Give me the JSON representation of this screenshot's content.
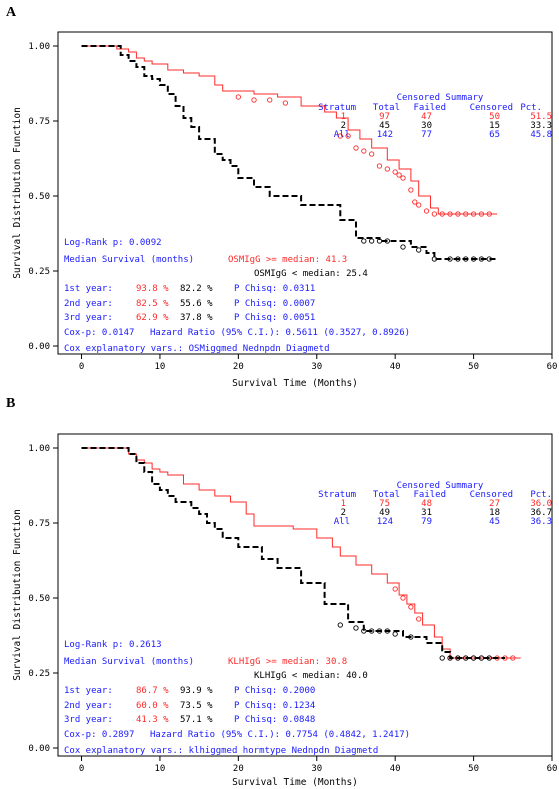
{
  "chart_data": [
    {
      "panel_label": "A",
      "type": "line",
      "xlabel": "Survival Time (Months)",
      "ylabel": "Survival Distribution Function",
      "xlim": [
        -3,
        60
      ],
      "ylim": [
        0,
        1
      ],
      "x_ticks": [
        "0",
        "10",
        "20",
        "30",
        "40",
        "50",
        "60"
      ],
      "y_ticks": [
        "0.00",
        "0.25",
        "0.50",
        "0.75",
        "1.00"
      ],
      "grid": false,
      "colors": {
        "stratum1": "#ff2a2a",
        "stratum2": "#000000",
        "info": "#1a1aff"
      },
      "series": [
        {
          "stratum": "1",
          "color": "#ff2a2a",
          "style": "solid",
          "points": [
            [
              0,
              1
            ],
            [
              4,
              1
            ],
            [
              4.5,
              0.99
            ],
            [
              6,
              0.98
            ],
            [
              7,
              0.96
            ],
            [
              8,
              0.95
            ],
            [
              9,
              0.94
            ],
            [
              11,
              0.92
            ],
            [
              13,
              0.91
            ],
            [
              15,
              0.9
            ],
            [
              17,
              0.87
            ],
            [
              18,
              0.85
            ],
            [
              22,
              0.84
            ],
            [
              25,
              0.83
            ],
            [
              28,
              0.8
            ],
            [
              31,
              0.78
            ],
            [
              32.5,
              0.76
            ],
            [
              34,
              0.72
            ],
            [
              35.5,
              0.69
            ],
            [
              37,
              0.66
            ],
            [
              39,
              0.62
            ],
            [
              40.5,
              0.59
            ],
            [
              42,
              0.55
            ],
            [
              43,
              0.5
            ],
            [
              44.5,
              0.46
            ],
            [
              45.5,
              0.44
            ],
            [
              53,
              0.44
            ]
          ],
          "censored": [
            [
              20,
              0.83
            ],
            [
              22,
              0.82
            ],
            [
              24,
              0.82
            ],
            [
              26,
              0.81
            ],
            [
              33,
              0.7
            ],
            [
              34,
              0.7
            ],
            [
              35,
              0.66
            ],
            [
              36,
              0.65
            ],
            [
              37,
              0.64
            ],
            [
              38,
              0.6
            ],
            [
              39,
              0.59
            ],
            [
              40,
              0.58
            ],
            [
              40.5,
              0.57
            ],
            [
              41,
              0.56
            ],
            [
              42,
              0.52
            ],
            [
              42.5,
              0.48
            ],
            [
              43,
              0.47
            ],
            [
              44,
              0.45
            ],
            [
              45,
              0.44
            ],
            [
              46,
              0.44
            ],
            [
              47,
              0.44
            ],
            [
              48,
              0.44
            ],
            [
              49,
              0.44
            ],
            [
              50,
              0.44
            ],
            [
              51,
              0.44
            ],
            [
              52,
              0.44
            ]
          ]
        },
        {
          "stratum": "2",
          "color": "#000000",
          "style": "dashed",
          "points": [
            [
              0,
              1
            ],
            [
              4,
              1
            ],
            [
              5,
              0.97
            ],
            [
              6,
              0.95
            ],
            [
              7,
              0.93
            ],
            [
              8,
              0.9
            ],
            [
              9,
              0.89
            ],
            [
              10,
              0.87
            ],
            [
              11,
              0.84
            ],
            [
              12,
              0.8
            ],
            [
              13,
              0.76
            ],
            [
              14,
              0.73
            ],
            [
              15,
              0.69
            ],
            [
              17,
              0.64
            ],
            [
              18,
              0.62
            ],
            [
              19,
              0.6
            ],
            [
              20,
              0.56
            ],
            [
              22,
              0.53
            ],
            [
              24,
              0.5
            ],
            [
              28,
              0.47
            ],
            [
              33,
              0.42
            ],
            [
              35,
              0.36
            ],
            [
              38,
              0.35
            ],
            [
              42,
              0.33
            ],
            [
              44,
              0.31
            ],
            [
              45,
              0.29
            ],
            [
              53,
              0.29
            ]
          ],
          "censored": [
            [
              36,
              0.35
            ],
            [
              37,
              0.35
            ],
            [
              38,
              0.35
            ],
            [
              39,
              0.35
            ],
            [
              41,
              0.33
            ],
            [
              43,
              0.32
            ],
            [
              45,
              0.29
            ],
            [
              47,
              0.29
            ],
            [
              48,
              0.29
            ],
            [
              49,
              0.29
            ],
            [
              50,
              0.29
            ],
            [
              51,
              0.29
            ],
            [
              52,
              0.29
            ]
          ]
        }
      ],
      "summary": {
        "title": "Censored Summary",
        "headers": [
          "Stratum",
          "Total",
          "Failed",
          "Censored",
          "Pct."
        ],
        "rows": [
          {
            "color": "#ff2a2a",
            "cells": [
              "1",
              "97",
              "47",
              "50",
              "51.5"
            ]
          },
          {
            "color": "#000000",
            "cells": [
              "2",
              "45",
              "30",
              "15",
              "33.3"
            ]
          },
          {
            "color": "#1a1aff",
            "cells": [
              "All",
              "142",
              "77",
              "65",
              "45.8"
            ]
          }
        ]
      },
      "stats": {
        "logrank": "Log-Rank p: 0.0092",
        "median_label": "Median Survival (months)",
        "median_high": "OSMIgG >= median: 41.3",
        "median_low": "OSMIgG < median: 25.4",
        "years": [
          {
            "label": "1st year:",
            "v1": "93.8 %",
            "v2": "82.2 %",
            "p": "P Chisq: 0.0311"
          },
          {
            "label": "2nd year:",
            "v1": "82.5 %",
            "v2": "55.6 %",
            "p": "P Chisq: 0.0007"
          },
          {
            "label": "3rd year:",
            "v1": "62.9 %",
            "v2": "37.8 %",
            "p": "P Chisq: 0.0051"
          }
        ],
        "cox_p": "Cox-p: 0.0147",
        "hazard": "Hazard Ratio (95% C.I.): 0.5611 (0.3527, 0.8926)",
        "cox_vars": "Cox explanatory vars.: OSMiggmed Nednpdn Diagmetd"
      }
    },
    {
      "panel_label": "B",
      "type": "line",
      "xlabel": "Survival Time (Months)",
      "ylabel": "Survival Distribution Function",
      "xlim": [
        -3,
        60
      ],
      "ylim": [
        0,
        1
      ],
      "x_ticks": [
        "0",
        "10",
        "20",
        "30",
        "40",
        "50",
        "60"
      ],
      "y_ticks": [
        "0.00",
        "0.25",
        "0.50",
        "0.75",
        "1.00"
      ],
      "grid": false,
      "colors": {
        "stratum1": "#ff2a2a",
        "stratum2": "#000000",
        "info": "#1a1aff"
      },
      "series": [
        {
          "stratum": "1",
          "color": "#ff2a2a",
          "style": "solid",
          "points": [
            [
              0,
              1
            ],
            [
              5,
              1
            ],
            [
              6,
              0.98
            ],
            [
              7,
              0.96
            ],
            [
              8,
              0.95
            ],
            [
              9,
              0.93
            ],
            [
              10,
              0.92
            ],
            [
              11,
              0.91
            ],
            [
              13,
              0.88
            ],
            [
              15,
              0.86
            ],
            [
              17,
              0.84
            ],
            [
              19,
              0.82
            ],
            [
              21,
              0.78
            ],
            [
              22,
              0.74
            ],
            [
              27,
              0.73
            ],
            [
              30,
              0.7
            ],
            [
              32,
              0.67
            ],
            [
              33,
              0.64
            ],
            [
              35,
              0.61
            ],
            [
              37,
              0.58
            ],
            [
              39,
              0.55
            ],
            [
              40.5,
              0.51
            ],
            [
              41.5,
              0.48
            ],
            [
              42.5,
              0.45
            ],
            [
              43.5,
              0.41
            ],
            [
              45,
              0.37
            ],
            [
              46,
              0.33
            ],
            [
              47,
              0.3
            ],
            [
              56,
              0.3
            ]
          ],
          "censored": [
            [
              40,
              0.53
            ],
            [
              41,
              0.5
            ],
            [
              42,
              0.47
            ],
            [
              43,
              0.43
            ],
            [
              47,
              0.3
            ],
            [
              48,
              0.3
            ],
            [
              49,
              0.3
            ],
            [
              50,
              0.3
            ],
            [
              51,
              0.3
            ],
            [
              52,
              0.3
            ],
            [
              53,
              0.3
            ],
            [
              54,
              0.3
            ],
            [
              55,
              0.3
            ]
          ]
        },
        {
          "stratum": "2",
          "color": "#000000",
          "style": "dashed",
          "points": [
            [
              0,
              1
            ],
            [
              5,
              1
            ],
            [
              6,
              0.98
            ],
            [
              7,
              0.95
            ],
            [
              8,
              0.92
            ],
            [
              9,
              0.88
            ],
            [
              10,
              0.86
            ],
            [
              11,
              0.84
            ],
            [
              12,
              0.82
            ],
            [
              14,
              0.8
            ],
            [
              15,
              0.78
            ],
            [
              16,
              0.75
            ],
            [
              17,
              0.73
            ],
            [
              18,
              0.7
            ],
            [
              20,
              0.67
            ],
            [
              23,
              0.63
            ],
            [
              25,
              0.6
            ],
            [
              28,
              0.55
            ],
            [
              31,
              0.48
            ],
            [
              34,
              0.42
            ],
            [
              36,
              0.39
            ],
            [
              41,
              0.37
            ],
            [
              44,
              0.35
            ],
            [
              46,
              0.32
            ],
            [
              47,
              0.3
            ],
            [
              54,
              0.3
            ]
          ],
          "censored": [
            [
              33,
              0.41
            ],
            [
              35,
              0.4
            ],
            [
              36,
              0.39
            ],
            [
              37,
              0.39
            ],
            [
              38,
              0.39
            ],
            [
              39,
              0.39
            ],
            [
              40,
              0.38
            ],
            [
              42,
              0.37
            ],
            [
              46,
              0.3
            ],
            [
              47,
              0.3
            ],
            [
              48,
              0.3
            ],
            [
              49,
              0.3
            ],
            [
              50,
              0.3
            ],
            [
              51,
              0.3
            ],
            [
              52,
              0.3
            ]
          ]
        }
      ],
      "summary": {
        "title": "Censored Summary",
        "headers": [
          "Stratum",
          "Total",
          "Failed",
          "Censored",
          "Pct."
        ],
        "rows": [
          {
            "color": "#ff2a2a",
            "cells": [
              "1",
              "75",
              "48",
              "27",
              "36.0"
            ]
          },
          {
            "color": "#000000",
            "cells": [
              "2",
              "49",
              "31",
              "18",
              "36.7"
            ]
          },
          {
            "color": "#1a1aff",
            "cells": [
              "All",
              "124",
              "79",
              "45",
              "36.3"
            ]
          }
        ]
      },
      "stats": {
        "logrank": "Log-Rank p: 0.2613",
        "median_label": "Median Survival (months)",
        "median_high": "KLHIgG >= median: 30.8",
        "median_low": "KLHIgG < median: 40.0",
        "years": [
          {
            "label": "1st year:",
            "v1": "86.7 %",
            "v2": "93.9 %",
            "p": "P Chisq: 0.2000"
          },
          {
            "label": "2nd year:",
            "v1": "60.0 %",
            "v2": "73.5 %",
            "p": "P Chisq: 0.1234"
          },
          {
            "label": "3rd year:",
            "v1": "41.3 %",
            "v2": "57.1 %",
            "p": "P Chisq: 0.0848"
          }
        ],
        "cox_p": "Cox-p: 0.2897",
        "hazard": "Hazard Ratio (95% C.I.): 0.7754 (0.4842, 1.2417)",
        "cox_vars": "Cox explanatory vars.: klhiggmed hormtype Nednpdn Diagmetd"
      }
    }
  ]
}
